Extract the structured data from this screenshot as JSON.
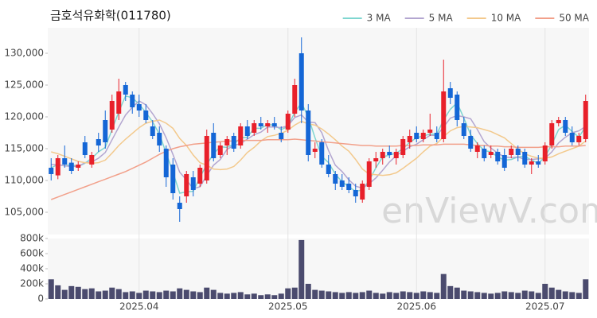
{
  "chart_data": [
    {
      "type": "candlestick",
      "title": "금호석유화학(011780)",
      "watermark": "enViewV.com",
      "legend": "top-right",
      "up_color": "#e8202a",
      "down_color": "#1466d6",
      "categories": [
        null,
        null,
        null,
        null,
        null,
        null,
        null,
        null,
        null,
        null,
        null,
        null,
        null,
        "2025.04",
        null,
        null,
        null,
        null,
        null,
        null,
        null,
        null,
        null,
        null,
        null,
        null,
        null,
        null,
        null,
        null,
        null,
        null,
        null,
        null,
        null,
        "2025.05",
        null,
        null,
        null,
        null,
        null,
        null,
        null,
        null,
        null,
        null,
        null,
        null,
        null,
        null,
        null,
        null,
        null,
        null,
        "2025.06",
        null,
        null,
        null,
        null,
        null,
        null,
        null,
        null,
        null,
        null,
        null,
        null,
        null,
        null,
        null,
        null,
        null,
        null,
        "2025.07",
        null,
        null,
        null,
        null,
        null,
        null
      ],
      "open": [
        112000,
        110800,
        113500,
        112800,
        112000,
        116000,
        112500,
        116500,
        119500,
        118000,
        120500,
        125000,
        123500,
        122000,
        121000,
        118500,
        117500,
        115000,
        112500,
        106500,
        107500,
        110500,
        109500,
        110000,
        117500,
        114000,
        115500,
        117000,
        115500,
        118500,
        117500,
        119000,
        118500,
        119000,
        117500,
        118000,
        120500,
        130000,
        121000,
        114500,
        116000,
        112500,
        111000,
        110000,
        109500,
        108500,
        107000,
        109000,
        113000,
        113500,
        114500,
        113500,
        114000,
        116000,
        117500,
        116500,
        117500,
        117500,
        116500,
        124500,
        123500,
        119000,
        117000,
        114500,
        115000,
        114000,
        114500,
        114000,
        114000,
        115000,
        114500,
        112500,
        113000,
        113000,
        115500,
        119000,
        119500,
        117500,
        116000,
        116500
      ],
      "high": [
        113500,
        114000,
        115500,
        113500,
        113000,
        117000,
        114500,
        117500,
        121000,
        123500,
        126000,
        125500,
        124000,
        123500,
        122000,
        119500,
        118500,
        115500,
        113500,
        107500,
        111500,
        111500,
        112500,
        118000,
        119000,
        116000,
        117000,
        117500,
        119000,
        119500,
        119500,
        120000,
        119500,
        120000,
        118500,
        121000,
        126000,
        132500,
        122000,
        116000,
        116500,
        114000,
        111500,
        111000,
        110500,
        109500,
        110000,
        113500,
        114500,
        115000,
        115500,
        115000,
        117000,
        118000,
        118500,
        118000,
        120500,
        118500,
        129000,
        125500,
        124000,
        120000,
        118000,
        116000,
        115500,
        115500,
        115000,
        115000,
        115500,
        115500,
        115000,
        113500,
        114000,
        116000,
        119500,
        120000,
        120000,
        118500,
        117500,
        123500
      ],
      "low": [
        110000,
        110200,
        112000,
        111000,
        111500,
        113500,
        112000,
        114500,
        115000,
        117500,
        119500,
        122500,
        120500,
        120000,
        119000,
        116500,
        114500,
        109000,
        107000,
        103500,
        106500,
        107500,
        109000,
        109500,
        113000,
        113500,
        114000,
        114500,
        115000,
        116500,
        117000,
        118000,
        117500,
        118000,
        116000,
        117500,
        120000,
        119000,
        113000,
        113500,
        112000,
        110500,
        108500,
        108500,
        108000,
        106500,
        106500,
        108500,
        112000,
        112500,
        113500,
        112500,
        113500,
        115000,
        116000,
        116000,
        117000,
        116000,
        116000,
        122000,
        118500,
        116500,
        114500,
        113500,
        113000,
        113500,
        112500,
        111500,
        113500,
        113000,
        112000,
        111000,
        112000,
        112500,
        115000,
        118500,
        117000,
        115500,
        115500,
        116000
      ],
      "close": [
        111000,
        113500,
        112500,
        111500,
        112500,
        114000,
        114000,
        115500,
        116000,
        122500,
        124000,
        123500,
        121500,
        121000,
        119500,
        117000,
        115500,
        110500,
        108000,
        105500,
        111000,
        108500,
        112000,
        117000,
        113500,
        115500,
        116500,
        115000,
        118500,
        117000,
        119000,
        118500,
        119000,
        118500,
        116500,
        120500,
        125000,
        121000,
        114000,
        115000,
        112500,
        111000,
        109500,
        109000,
        108500,
        107500,
        109500,
        113000,
        113500,
        114500,
        114000,
        114500,
        116500,
        117000,
        116500,
        117500,
        118000,
        116500,
        124000,
        123000,
        119500,
        117000,
        115000,
        115500,
        113500,
        114500,
        113000,
        112000,
        115000,
        114000,
        112500,
        113000,
        112500,
        115500,
        119000,
        119500,
        117500,
        116000,
        117000,
        122500
      ],
      "series": [
        {
          "name": "3 MA",
          "color": "#7fd6d0",
          "values": [
            112000,
            112500,
            112300,
            112500,
            112200,
            112700,
            113500,
            114500,
            115200,
            118000,
            120800,
            123300,
            123000,
            122000,
            120700,
            119200,
            117300,
            114300,
            111300,
            108000,
            108200,
            108300,
            110500,
            112500,
            114200,
            115300,
            115200,
            115700,
            116700,
            116800,
            118200,
            118200,
            118800,
            118700,
            118000,
            118500,
            120700,
            122200,
            120000,
            116700,
            113800,
            112800,
            111000,
            109800,
            109000,
            108300,
            108500,
            110000,
            112000,
            113700,
            114000,
            114300,
            115000,
            116000,
            116700,
            117000,
            117300,
            117300,
            119500,
            121200,
            122200,
            119800,
            117200,
            115800,
            114700,
            114500,
            113700,
            113200,
            113300,
            113700,
            113800,
            113200,
            112700,
            113700,
            115700,
            118000,
            118700,
            117700,
            116800,
            118500
          ]
        },
        {
          "name": "5 MA",
          "color": "#b3a6d0",
          "values": [
            112500,
            112500,
            112300,
            112200,
            112200,
            112800,
            112900,
            113500,
            114400,
            116400,
            118400,
            120300,
            121500,
            122500,
            121900,
            120500,
            118900,
            116700,
            114100,
            111300,
            110100,
            108700,
            109000,
            110800,
            112400,
            113300,
            114900,
            115500,
            115800,
            116500,
            117200,
            117600,
            118400,
            118400,
            118300,
            118600,
            119900,
            120300,
            119200,
            119100,
            117500,
            114700,
            112400,
            111400,
            110100,
            109100,
            108800,
            109500,
            110400,
            111600,
            112900,
            113900,
            114600,
            115300,
            115700,
            116400,
            117100,
            117100,
            118400,
            119800,
            120200,
            120000,
            119700,
            118000,
            116100,
            115100,
            114300,
            113700,
            113600,
            113700,
            113300,
            113300,
            113400,
            113500,
            114500,
            115900,
            116800,
            117500,
            117800,
            118500
          ]
        },
        {
          "name": "10 MA",
          "color": "#f3c98c",
          "values": [
            114500,
            114200,
            113800,
            113400,
            113000,
            112800,
            112700,
            112800,
            113200,
            114300,
            115500,
            116500,
            117400,
            118300,
            119000,
            119300,
            119500,
            119000,
            118200,
            116600,
            115500,
            114000,
            112800,
            112400,
            111800,
            111700,
            111800,
            112200,
            113200,
            114400,
            115200,
            116200,
            116900,
            117100,
            117400,
            117900,
            118700,
            119300,
            118900,
            118700,
            118100,
            117300,
            116400,
            115400,
            114600,
            113300,
            111800,
            111000,
            110900,
            110800,
            110900,
            111200,
            111900,
            112700,
            113500,
            114500,
            115400,
            115800,
            116900,
            117800,
            118300,
            118500,
            118400,
            118300,
            118000,
            117700,
            117200,
            116700,
            115800,
            114900,
            114200,
            113800,
            113500,
            113500,
            113700,
            114200,
            114600,
            115000,
            115400,
            116200
          ]
        },
        {
          "name": "50 MA",
          "color": "#f2a08a",
          "values": [
            107000,
            107400,
            107800,
            108200,
            108600,
            109000,
            109400,
            109800,
            110200,
            110600,
            111000,
            111400,
            111900,
            112400,
            112900,
            113500,
            114100,
            114600,
            115000,
            115300,
            115500,
            115700,
            115800,
            115900,
            116000,
            116100,
            116200,
            116200,
            116300,
            116300,
            116300,
            116300,
            116400,
            116400,
            116400,
            116400,
            116500,
            116400,
            116300,
            116200,
            116100,
            116000,
            115900,
            115800,
            115700,
            115600,
            115500,
            115500,
            115400,
            115400,
            115400,
            115400,
            115500,
            115500,
            115500,
            115600,
            115600,
            115600,
            115700,
            115700,
            115700,
            115700,
            115600,
            115500,
            115500,
            115400,
            115400,
            115300,
            115300,
            115200,
            115200,
            115200,
            115200,
            115300,
            115300,
            115300,
            115400,
            115400,
            115400,
            115500
          ]
        }
      ],
      "ylim": [
        101500,
        134000
      ],
      "yticks": [
        {
          "value": 105000,
          "label": "105,000"
        },
        {
          "value": 110000,
          "label": "110,000"
        },
        {
          "value": 115000,
          "label": "115,000"
        },
        {
          "value": 120000,
          "label": "120,000"
        },
        {
          "value": 125000,
          "label": "125,000"
        },
        {
          "value": 130000,
          "label": "130,000"
        }
      ]
    },
    {
      "type": "bar",
      "color": "#4b4b6e",
      "values": [
        260000,
        180000,
        120000,
        170000,
        160000,
        130000,
        140000,
        100000,
        110000,
        150000,
        130000,
        90000,
        100000,
        80000,
        110000,
        100000,
        90000,
        110000,
        100000,
        140000,
        120000,
        100000,
        90000,
        150000,
        120000,
        80000,
        70000,
        80000,
        90000,
        60000,
        70000,
        50000,
        60000,
        50000,
        70000,
        140000,
        150000,
        780000,
        200000,
        120000,
        110000,
        100000,
        90000,
        80000,
        90000,
        80000,
        90000,
        110000,
        80000,
        70000,
        90000,
        80000,
        100000,
        90000,
        80000,
        100000,
        90000,
        80000,
        330000,
        170000,
        150000,
        110000,
        100000,
        90000,
        80000,
        70000,
        80000,
        100000,
        90000,
        80000,
        110000,
        100000,
        80000,
        200000,
        150000,
        120000,
        100000,
        90000,
        80000,
        260000
      ],
      "ylim": [
        0,
        800000
      ],
      "yticks": [
        0,
        {
          "value": 200000,
          "label": "200k"
        },
        {
          "value": 400000,
          "label": "400k"
        },
        {
          "value": 600000,
          "label": "600k"
        },
        {
          "value": 800000,
          "label": "800k"
        }
      ]
    }
  ]
}
